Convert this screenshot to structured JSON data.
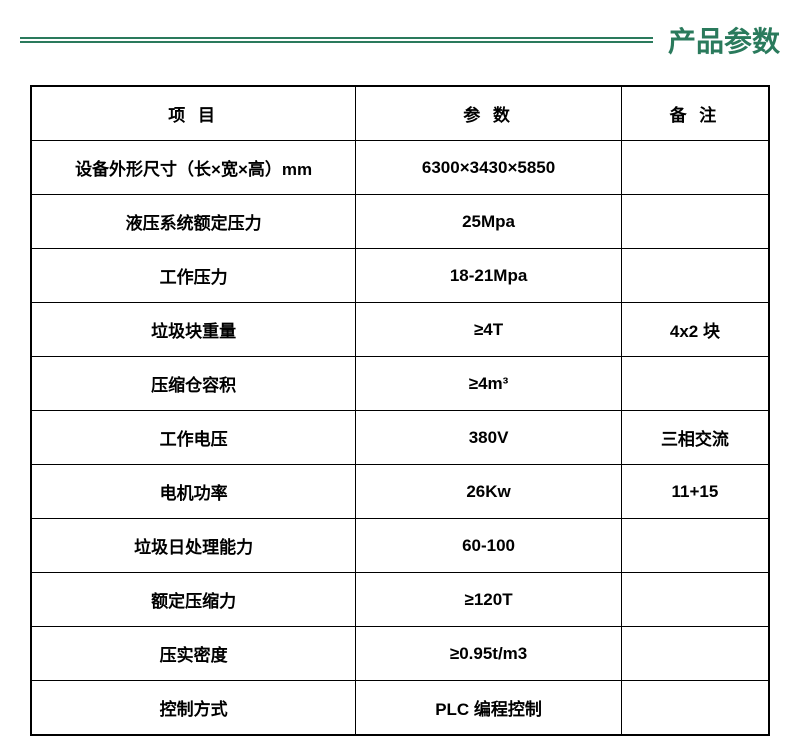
{
  "header": {
    "title": "产品参数"
  },
  "table": {
    "colors": {
      "accent": "#2a7a5c",
      "border": "#000000",
      "text": "#000000",
      "background": "#ffffff"
    },
    "typography": {
      "header_fontsize": 28,
      "cell_fontsize": 17,
      "font_family": "Microsoft YaHei",
      "font_weight": "bold"
    },
    "column_widths": [
      "44%",
      "36%",
      "20%"
    ],
    "header_line_height": 6,
    "columns": [
      "项 目",
      "参 数",
      "备 注"
    ],
    "rows": [
      {
        "item": "设备外形尺寸（长×宽×高）mm",
        "param": "6300×3430×5850",
        "note": ""
      },
      {
        "item": "液压系统额定压力",
        "param": "25Mpa",
        "note": ""
      },
      {
        "item": "工作压力",
        "param": "18-21Mpa",
        "note": ""
      },
      {
        "item": "垃圾块重量",
        "param": "≥4T",
        "note": "4x2 块"
      },
      {
        "item": "压缩仓容积",
        "param": "≥4m³",
        "note": ""
      },
      {
        "item": "工作电压",
        "param": "380V",
        "note": "三相交流"
      },
      {
        "item": "电机功率",
        "param": "26Kw",
        "note": "11+15"
      },
      {
        "item": "垃圾日处理能力",
        "param": "60-100",
        "note": ""
      },
      {
        "item": "额定压缩力",
        "param": "≥120T",
        "note": ""
      },
      {
        "item": "压实密度",
        "param": "≥0.95t/m3",
        "note": ""
      },
      {
        "item": "控制方式",
        "param": "PLC 编程控制",
        "note": ""
      }
    ]
  }
}
